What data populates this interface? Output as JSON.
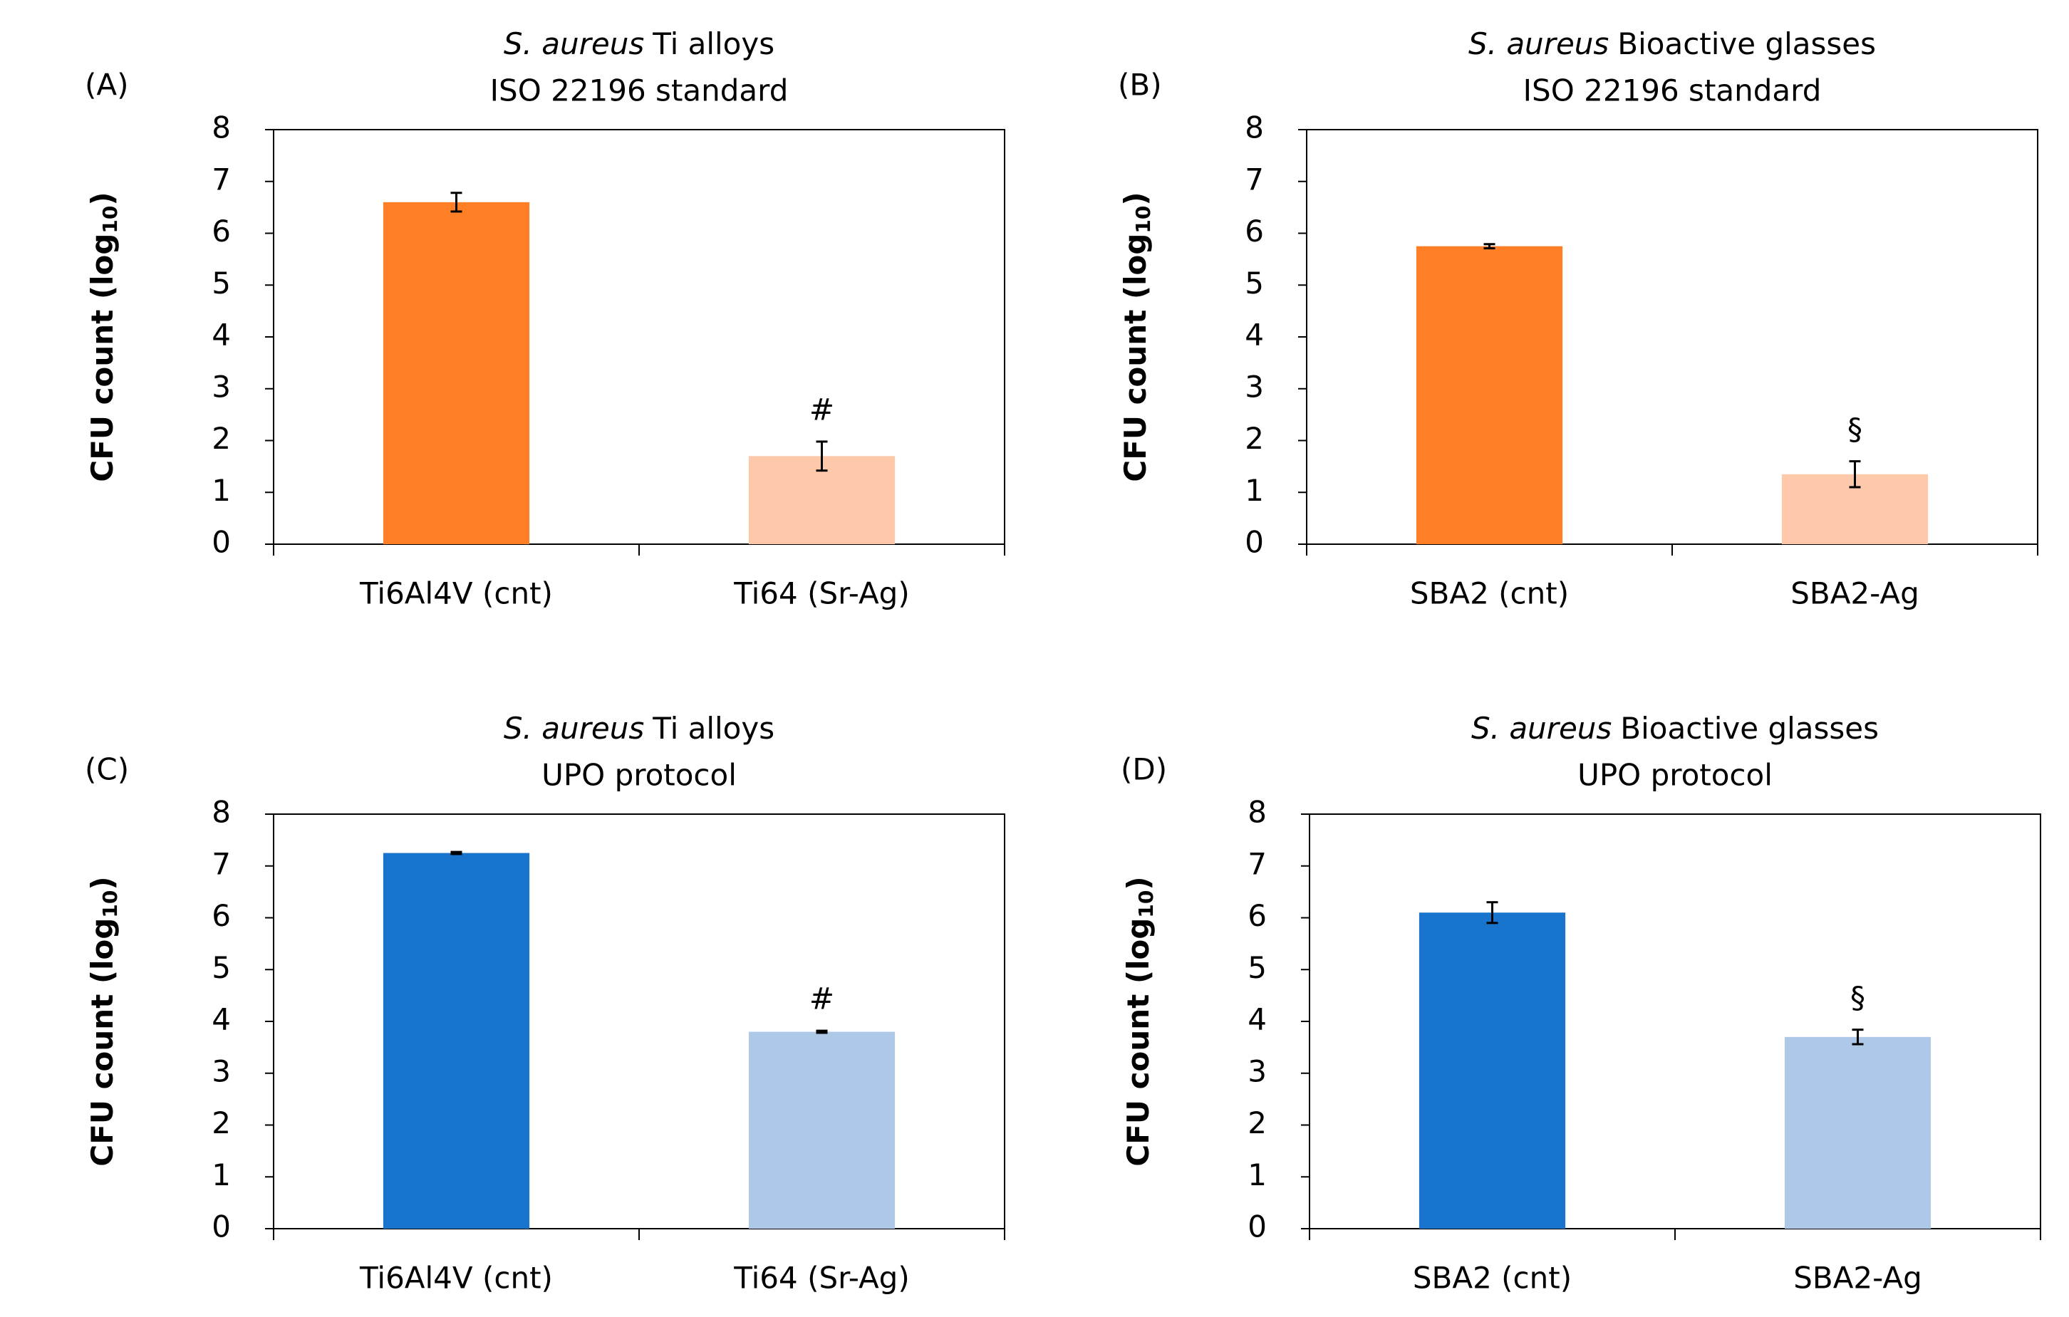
{
  "chart_data": [
    {
      "type": "bar",
      "panel": "(A)",
      "title_italic": "S. aureus",
      "title": "Ti alloys",
      "subtitle": "ISO 22196 standard",
      "ylabel": [
        "CFU count (log",
        "10",
        ")"
      ],
      "categories": [
        "Ti6Al4V (cnt)",
        "Ti64 (Sr-Ag)"
      ],
      "series": [
        {
          "values": [
            6.6,
            1.7
          ],
          "errors": [
            0.18,
            0.28
          ],
          "colors": [
            "#ff7f27",
            "#fdc9aa"
          ],
          "annotations": [
            null,
            "#"
          ]
        }
      ],
      "ylim": [
        0,
        8
      ],
      "yticks": [
        0,
        1,
        2,
        3,
        4,
        5,
        6,
        7,
        8
      ]
    },
    {
      "type": "bar",
      "panel": "(B)",
      "title_italic": "S. aureus",
      "title": "Bioactive glasses",
      "subtitle": "ISO 22196 standard",
      "ylabel": [
        "CFU count (log",
        "10",
        ")"
      ],
      "categories": [
        "SBA2 (cnt)",
        "SBA2-Ag"
      ],
      "series": [
        {
          "values": [
            5.75,
            1.35
          ],
          "errors": [
            0.04,
            0.25
          ],
          "colors": [
            "#ff7f27",
            "#fdc9aa"
          ],
          "annotations": [
            null,
            "§"
          ]
        }
      ],
      "ylim": [
        0,
        8
      ],
      "yticks": [
        0,
        1,
        2,
        3,
        4,
        5,
        6,
        7,
        8
      ]
    },
    {
      "type": "bar",
      "panel": "(C)",
      "title_italic": "S. aureus",
      "title": "Ti alloys",
      "subtitle": "UPO protocol",
      "ylabel": [
        "CFU count (log",
        "10",
        ")"
      ],
      "categories": [
        "Ti6Al4V (cnt)",
        "Ti64 (Sr-Ag)"
      ],
      "series": [
        {
          "values": [
            7.25,
            3.8
          ],
          "errors": [
            0.02,
            0.02
          ],
          "colors": [
            "#1874cd",
            "#aec8e8"
          ],
          "annotations": [
            null,
            "#"
          ]
        }
      ],
      "ylim": [
        0,
        8
      ],
      "yticks": [
        0,
        1,
        2,
        3,
        4,
        5,
        6,
        7,
        8
      ]
    },
    {
      "type": "bar",
      "panel": "(D)",
      "title_italic": "S. aureus",
      "title": "Bioactive glasses",
      "subtitle": "UPO protocol",
      "ylabel": [
        "CFU count (log",
        "10",
        ")"
      ],
      "categories": [
        "SBA2 (cnt)",
        "SBA2-Ag"
      ],
      "series": [
        {
          "values": [
            6.1,
            3.7
          ],
          "errors": [
            0.2,
            0.14
          ],
          "colors": [
            "#1874cd",
            "#aec8e8"
          ],
          "annotations": [
            null,
            "§"
          ]
        }
      ],
      "ylim": [
        0,
        8
      ],
      "yticks": [
        0,
        1,
        2,
        3,
        4,
        5,
        6,
        7,
        8
      ]
    }
  ]
}
